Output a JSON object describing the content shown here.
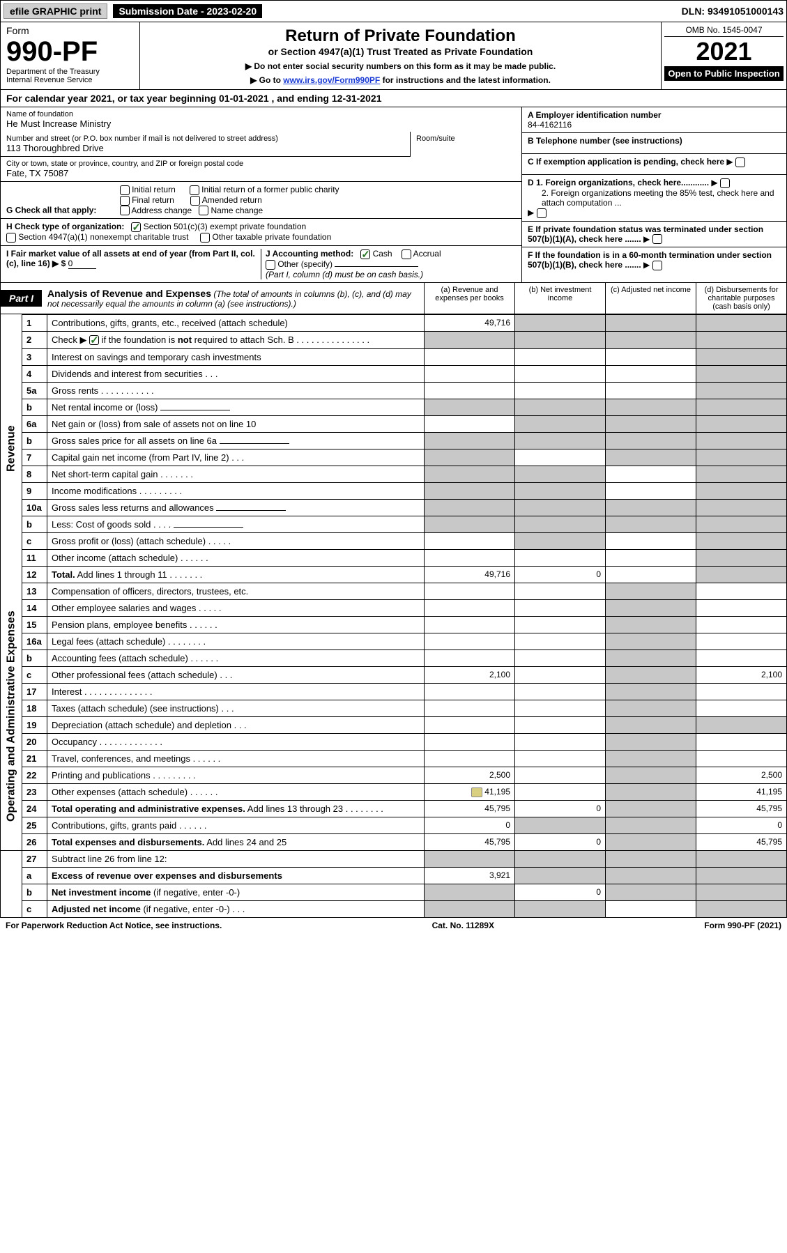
{
  "topbar": {
    "efile": "efile GRAPHIC print",
    "subdate_label": "Submission Date - ",
    "subdate": "2023-02-20",
    "dln_label": "DLN: ",
    "dln": "93491051000143"
  },
  "header": {
    "form_label": "Form",
    "form_no": "990-PF",
    "dept": "Department of the Treasury\nInternal Revenue Service",
    "title": "Return of Private Foundation",
    "subtitle": "or Section 4947(a)(1) Trust Treated as Private Foundation",
    "instr1": "▶ Do not enter social security numbers on this form as it may be made public.",
    "instr2_pre": "▶ Go to ",
    "instr2_link": "www.irs.gov/Form990PF",
    "instr2_post": " for instructions and the latest information.",
    "omb": "OMB No. 1545-0047",
    "year": "2021",
    "inspect": "Open to Public Inspection"
  },
  "cal": {
    "text_pre": "For calendar year 2021, or tax year beginning ",
    "begin": "01-01-2021",
    "text_mid": " , and ending ",
    "end": "12-31-2021"
  },
  "info": {
    "name_label": "Name of foundation",
    "name": "He Must Increase Ministry",
    "addr_label": "Number and street (or P.O. box number if mail is not delivered to street address)",
    "addr": "113 Thoroughbred Drive",
    "room_label": "Room/suite",
    "city_label": "City or town, state or province, country, and ZIP or foreign postal code",
    "city": "Fate, TX  75087",
    "ein_label": "A Employer identification number",
    "ein": "84-4162116",
    "tel_label": "B Telephone number (see instructions)",
    "c_label": "C If exemption application is pending, check here",
    "d1_label": "D 1. Foreign organizations, check here............",
    "d2_label": "2. Foreign organizations meeting the 85% test, check here and attach computation ...",
    "e_label": "E  If private foundation status was terminated under section 507(b)(1)(A), check here .......",
    "f_label": "F  If the foundation is in a 60-month termination under section 507(b)(1)(B), check here .......",
    "g_label": "G Check all that apply:",
    "g_opts": [
      "Initial return",
      "Final return",
      "Address change",
      "Initial return of a former public charity",
      "Amended return",
      "Name change"
    ],
    "h_label": "H Check type of organization:",
    "h1": "Section 501(c)(3) exempt private foundation",
    "h2": "Section 4947(a)(1) nonexempt charitable trust",
    "h3": "Other taxable private foundation",
    "i_label": "I Fair market value of all assets at end of year (from Part II, col. (c), line 16) ▶ $",
    "i_val": "0",
    "j_label": "J Accounting method:",
    "j1": "Cash",
    "j2": "Accrual",
    "j3": "Other (specify)",
    "j_note": "(Part I, column (d) must be on cash basis.)"
  },
  "part1": {
    "tag": "Part I",
    "title": "Analysis of Revenue and Expenses",
    "note": "(The total of amounts in columns (b), (c), and (d) may not necessarily equal the amounts in column (a) (see instructions).)",
    "cols": {
      "a": "(a)  Revenue and expenses per books",
      "b": "(b)  Net investment income",
      "c": "(c)  Adjusted net income",
      "d": "(d)  Disbursements for charitable purposes (cash basis only)"
    }
  },
  "sides": {
    "rev": "Revenue",
    "exp": "Operating and Administrative Expenses"
  },
  "lines": [
    {
      "n": "1",
      "d": "Contributions, gifts, grants, etc., received (attach schedule)",
      "a": "49,716",
      "side": "rev",
      "grey": [
        "b",
        "c",
        "d"
      ]
    },
    {
      "n": "2",
      "d": "Check ▶ ☑ if the foundation is <b>not</b> required to attach Sch. B   .   .   .   .   .   .   .   .   .   .   .   .   .   .   .",
      "side": "rev",
      "grey": [
        "a",
        "b",
        "c",
        "d"
      ],
      "checked": true
    },
    {
      "n": "3",
      "d": "Interest on savings and temporary cash investments",
      "side": "rev",
      "grey": [
        "d"
      ]
    },
    {
      "n": "4",
      "d": "Dividends and interest from securities   .   .   .",
      "side": "rev",
      "grey": [
        "d"
      ]
    },
    {
      "n": "5a",
      "d": "Gross rents   .   .   .   .   .   .   .   .   .   .   .",
      "side": "rev",
      "grey": [
        "d"
      ]
    },
    {
      "n": "b",
      "d": "Net rental income or (loss)",
      "side": "rev",
      "grey": [
        "a",
        "b",
        "c",
        "d"
      ],
      "inline": true
    },
    {
      "n": "6a",
      "d": "Net gain or (loss) from sale of assets not on line 10",
      "side": "rev",
      "grey": [
        "b",
        "c",
        "d"
      ]
    },
    {
      "n": "b",
      "d": "Gross sales price for all assets on line 6a",
      "side": "rev",
      "grey": [
        "a",
        "b",
        "c",
        "d"
      ],
      "inline": true
    },
    {
      "n": "7",
      "d": "Capital gain net income (from Part IV, line 2)   .   .   .",
      "side": "rev",
      "grey": [
        "a",
        "c",
        "d"
      ]
    },
    {
      "n": "8",
      "d": "Net short-term capital gain   .   .   .   .   .   .   .",
      "side": "rev",
      "grey": [
        "a",
        "b",
        "d"
      ]
    },
    {
      "n": "9",
      "d": "Income modifications   .   .   .   .   .   .   .   .   .",
      "side": "rev",
      "grey": [
        "a",
        "b",
        "d"
      ]
    },
    {
      "n": "10a",
      "d": "Gross sales less returns and allowances",
      "side": "rev",
      "grey": [
        "a",
        "b",
        "c",
        "d"
      ],
      "inline": true
    },
    {
      "n": "b",
      "d": "Less: Cost of goods sold   .   .   .   .",
      "side": "rev",
      "grey": [
        "a",
        "b",
        "c",
        "d"
      ],
      "inline": true
    },
    {
      "n": "c",
      "d": "Gross profit or (loss) (attach schedule)   .   .   .   .   .",
      "side": "rev",
      "grey": [
        "b",
        "d"
      ]
    },
    {
      "n": "11",
      "d": "Other income (attach schedule)   .   .   .   .   .   .",
      "side": "rev",
      "grey": [
        "d"
      ]
    },
    {
      "n": "12",
      "d": "<b>Total.</b> Add lines 1 through 11   .   .   .   .   .   .   .",
      "side": "rev",
      "a": "49,716",
      "b": "0",
      "grey": [
        "d"
      ]
    },
    {
      "n": "13",
      "d": "Compensation of officers, directors, trustees, etc.",
      "side": "exp",
      "grey": [
        "c"
      ]
    },
    {
      "n": "14",
      "d": "Other employee salaries and wages   .   .   .   .   .",
      "side": "exp",
      "grey": [
        "c"
      ]
    },
    {
      "n": "15",
      "d": "Pension plans, employee benefits   .   .   .   .   .   .",
      "side": "exp",
      "grey": [
        "c"
      ]
    },
    {
      "n": "16a",
      "d": "Legal fees (attach schedule)   .   .   .   .   .   .   .   .",
      "side": "exp",
      "grey": [
        "c"
      ]
    },
    {
      "n": "b",
      "d": "Accounting fees (attach schedule)   .   .   .   .   .   .",
      "side": "exp",
      "grey": [
        "c"
      ]
    },
    {
      "n": "c",
      "d": "Other professional fees (attach schedule)   .   .   .",
      "side": "exp",
      "a": "2,100",
      "d_": "2,100",
      "grey": [
        "c"
      ]
    },
    {
      "n": "17",
      "d": "Interest   .   .   .   .   .   .   .   .   .   .   .   .   .   .",
      "side": "exp",
      "grey": [
        "c"
      ]
    },
    {
      "n": "18",
      "d": "Taxes (attach schedule) (see instructions)   .   .   .",
      "side": "exp",
      "grey": [
        "c"
      ]
    },
    {
      "n": "19",
      "d": "Depreciation (attach schedule) and depletion   .   .   .",
      "side": "exp",
      "grey": [
        "c",
        "d"
      ]
    },
    {
      "n": "20",
      "d": "Occupancy   .   .   .   .   .   .   .   .   .   .   .   .   .",
      "side": "exp",
      "grey": [
        "c"
      ]
    },
    {
      "n": "21",
      "d": "Travel, conferences, and meetings   .   .   .   .   .   .",
      "side": "exp",
      "grey": [
        "c"
      ]
    },
    {
      "n": "22",
      "d": "Printing and publications   .   .   .   .   .   .   .   .   .",
      "side": "exp",
      "a": "2,500",
      "d_": "2,500",
      "grey": [
        "c"
      ]
    },
    {
      "n": "23",
      "d": "Other expenses (attach schedule)   .   .   .   .   .   .",
      "side": "exp",
      "a": "41,195",
      "d_": "41,195",
      "grey": [
        "c"
      ],
      "attach": true
    },
    {
      "n": "24",
      "d": "<b>Total operating and administrative expenses.</b> Add lines 13 through 23   .   .   .   .   .   .   .   .",
      "side": "exp",
      "a": "45,795",
      "b": "0",
      "d_": "45,795",
      "grey": [
        "c"
      ]
    },
    {
      "n": "25",
      "d": "Contributions, gifts, grants paid   .   .   .   .   .   .",
      "side": "exp",
      "a": "0",
      "d_": "0",
      "grey": [
        "b",
        "c"
      ]
    },
    {
      "n": "26",
      "d": "<b>Total expenses and disbursements.</b> Add lines 24 and 25",
      "side": "exp",
      "a": "45,795",
      "b": "0",
      "d_": "45,795",
      "grey": [
        "c"
      ]
    },
    {
      "n": "27",
      "d": "Subtract line 26 from line 12:",
      "side": "none",
      "grey": [
        "a",
        "b",
        "c",
        "d"
      ]
    },
    {
      "n": "a",
      "d": "<b>Excess of revenue over expenses and disbursements</b>",
      "side": "none",
      "a": "3,921",
      "grey": [
        "b",
        "c",
        "d"
      ]
    },
    {
      "n": "b",
      "d": "<b>Net investment income</b> (if negative, enter -0-)",
      "side": "none",
      "b": "0",
      "grey": [
        "a",
        "c",
        "d"
      ]
    },
    {
      "n": "c",
      "d": "<b>Adjusted net income</b> (if negative, enter -0-)   .   .   .",
      "side": "none",
      "grey": [
        "a",
        "b",
        "d"
      ]
    }
  ],
  "foot": {
    "left": "For Paperwork Reduction Act Notice, see instructions.",
    "mid": "Cat. No. 11289X",
    "right": "Form 990-PF (2021)"
  },
  "colors": {
    "grey_cell": "#c8c8c8",
    "link": "#1a3bd6",
    "check": "#2a7a2a"
  }
}
